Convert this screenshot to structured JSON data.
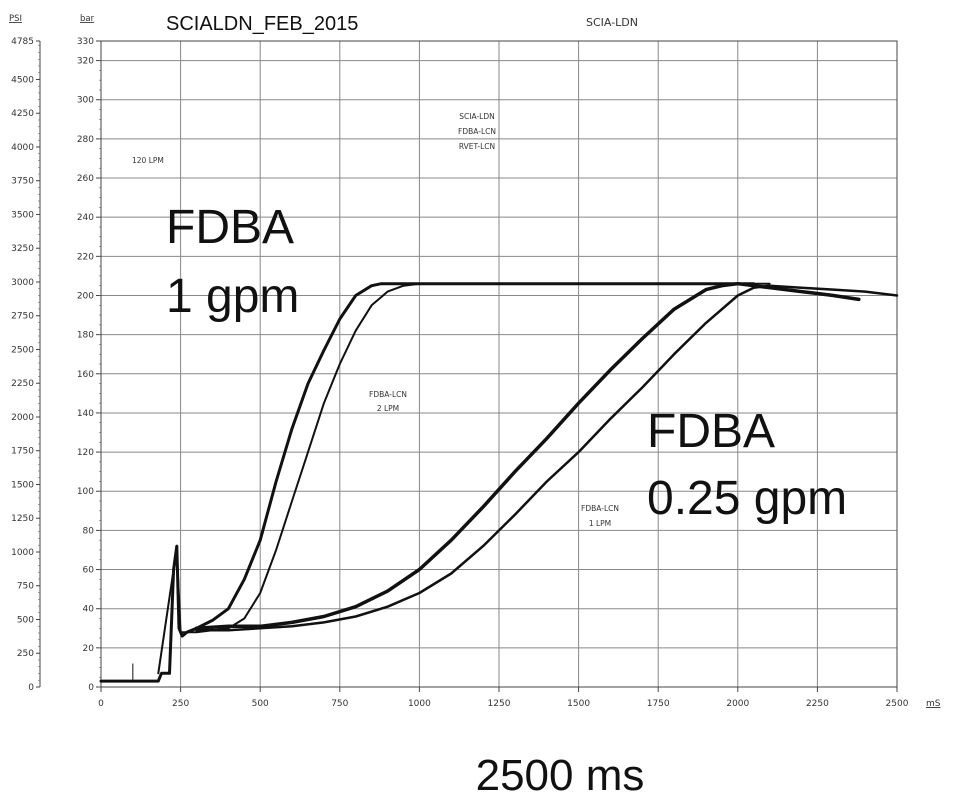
{
  "chart_data": {
    "type": "line",
    "title": "SCIALDN_FEB_2015",
    "subtitle": "SCIA-LDN",
    "xlabel": "2500 ms",
    "x_unit": "mS",
    "y_unit_left": "PSI",
    "y_unit_right": "bar",
    "xlim": [
      0,
      2500
    ],
    "ylim_bar": [
      0,
      330
    ],
    "ylim_psi": [
      0,
      4785
    ],
    "grid": true,
    "x_ticks": [
      "0",
      "250",
      "500",
      "750",
      "1000",
      "1250",
      "1500",
      "1750",
      "2000",
      "2250",
      "2500"
    ],
    "bar_ticks": [
      "0",
      "20",
      "40",
      "60",
      "80",
      "100",
      "120",
      "140",
      "160",
      "180",
      "200",
      "220",
      "240",
      "260",
      "280",
      "300",
      "320",
      "330"
    ],
    "psi_ticks": [
      "0",
      "250",
      "500",
      "750",
      "1000",
      "1250",
      "1500",
      "1750",
      "2000",
      "2250",
      "2500",
      "2750",
      "3000",
      "3250",
      "3500",
      "3750",
      "4000",
      "4250",
      "4500",
      "4785"
    ],
    "annotations": {
      "legend_block": [
        "SCIA-LDN",
        "FDBA-LCN",
        "RVET-LCN"
      ],
      "lpm_120": "120 LPM",
      "fdba_2lpm": [
        "FDBA-LCN",
        "2 LPM"
      ],
      "fdba_1lpm": [
        "FDBA-LCN",
        "1 LPM"
      ],
      "fdba_1gpm": [
        "FDBA",
        "1 gpm"
      ],
      "fdba_025gpm": [
        "FDBA",
        "0.25 gpm"
      ]
    },
    "series": [
      {
        "width": 3,
        "x": [
          0,
          100,
          180,
          190,
          215,
          228,
          238,
          245,
          255,
          270,
          300,
          350,
          400,
          450,
          500,
          550,
          600,
          650,
          700,
          750,
          800,
          850,
          880,
          900,
          1000,
          1200,
          1400,
          1600,
          1800,
          2000,
          2050
        ],
        "y": [
          3,
          3,
          3,
          7,
          7,
          60,
          72,
          30,
          26,
          28,
          30,
          34,
          40,
          55,
          75,
          105,
          132,
          155,
          172,
          188,
          200,
          205,
          206,
          206,
          206,
          206,
          206,
          206,
          206,
          206,
          206
        ]
      },
      {
        "width": 2,
        "x": [
          180,
          228,
          238,
          250,
          300,
          400,
          450,
          500,
          550,
          600,
          650,
          700,
          750,
          800,
          850,
          900,
          950,
          1000,
          1200,
          1400,
          1600,
          1800,
          2000,
          2100
        ],
        "y": [
          7,
          60,
          70,
          28,
          28,
          30,
          35,
          48,
          70,
          95,
          120,
          145,
          165,
          182,
          195,
          202,
          205,
          206,
          206,
          206,
          206,
          206,
          206,
          206
        ]
      },
      {
        "width": 3.5,
        "x": [
          300,
          400,
          500,
          600,
          700,
          800,
          900,
          1000,
          1100,
          1200,
          1300,
          1400,
          1500,
          1600,
          1700,
          1800,
          1900,
          1950,
          2000,
          2050,
          2100,
          2150,
          2200,
          2250,
          2300,
          2380
        ],
        "y": [
          30,
          31,
          31,
          33,
          36,
          41,
          49,
          60,
          75,
          92,
          110,
          127,
          145,
          162,
          178,
          193,
          203,
          205,
          206,
          205,
          204,
          203,
          202,
          201,
          200,
          198
        ]
      },
      {
        "width": 2.5,
        "x": [
          300,
          400,
          500,
          600,
          700,
          800,
          900,
          1000,
          1100,
          1200,
          1300,
          1400,
          1500,
          1600,
          1700,
          1800,
          1900,
          2000,
          2050,
          2100,
          2200,
          2300,
          2400,
          2500
        ],
        "y": [
          29,
          29,
          30,
          31,
          33,
          36,
          41,
          48,
          58,
          72,
          88,
          105,
          120,
          137,
          153,
          170,
          186,
          200,
          204,
          205,
          204,
          203,
          202,
          200
        ]
      }
    ]
  }
}
